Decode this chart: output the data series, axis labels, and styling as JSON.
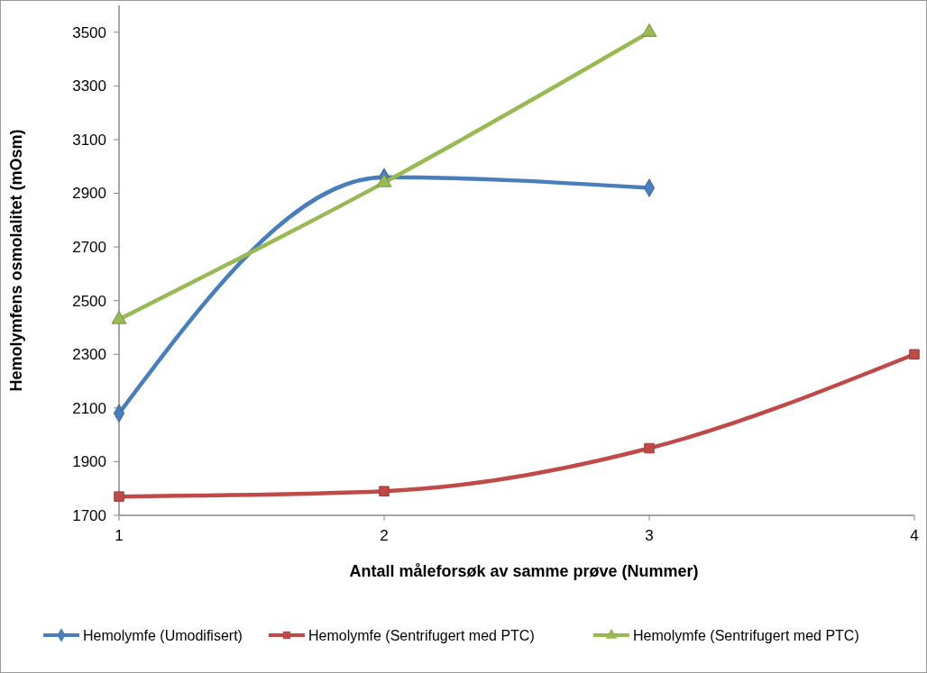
{
  "chart_data": {
    "type": "line",
    "xlabel": "Antall måleforsøk av samme prøve (Nummer)",
    "ylabel": "Hemolymfens osmolalitet (mOsm)",
    "x": [
      1,
      2,
      3,
      4
    ],
    "xlim": [
      1,
      4
    ],
    "xticks": [
      1,
      2,
      3,
      4
    ],
    "ylim": [
      1700,
      3600
    ],
    "yticks": [
      1700,
      1900,
      2100,
      2300,
      2500,
      2700,
      2900,
      3100,
      3300,
      3500
    ],
    "grid": false,
    "legend": "bottom",
    "series": [
      {
        "name": "Hemolymfe (Umodifisert)",
        "color": "#4a7ebb",
        "marker": "diamond",
        "values": [
          2080,
          2960,
          2920,
          null
        ]
      },
      {
        "name": "Hemolymfe (Sentrifugert med PTC)",
        "color": "#be4b48",
        "marker": "square",
        "values": [
          1770,
          1790,
          1950,
          2300
        ]
      },
      {
        "name": "Hemolymfe (Sentrifugert med PTC)",
        "color": "#98b954",
        "marker": "triangle",
        "values": [
          2430,
          2940,
          3500,
          null
        ]
      }
    ]
  }
}
